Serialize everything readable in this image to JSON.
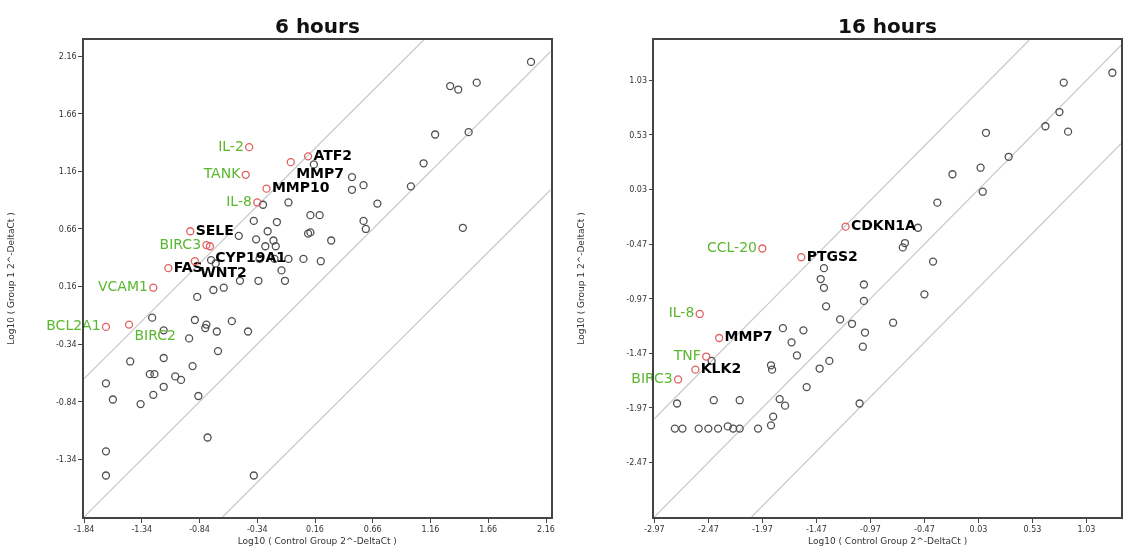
{
  "chart_data": [
    {
      "type": "scatter",
      "title": "6 hours",
      "xlabel": "Log10 ( Control Group 2^-DeltaCt )",
      "ylabel": "Log10 ( Group 1 2^-DeltaCt )",
      "xlim": [
        -1.84,
        2.2
      ],
      "ylim": [
        -1.84,
        2.3
      ],
      "xticks": [
        -1.84,
        -1.34,
        -0.84,
        -0.34,
        0.16,
        0.66,
        1.16,
        1.66,
        2.16
      ],
      "yticks": [
        -1.34,
        -0.84,
        -0.34,
        0.16,
        0.66,
        1.16,
        1.66,
        2.16
      ],
      "marker": "circle",
      "series": [
        {
          "type": "line",
          "marker": "none",
          "color": "#c8c8c8",
          "x": [
            -1.84,
            1.1
          ],
          "values": [
            -0.64,
            2.3
          ]
        },
        {
          "type": "line",
          "marker": "none",
          "color": "#c8c8c8",
          "x": [
            -1.84,
            2.2
          ],
          "values": [
            -1.84,
            2.2
          ]
        },
        {
          "type": "line",
          "marker": "none",
          "color": "#c8c8c8",
          "x": [
            -0.64,
            2.2
          ],
          "values": [
            -1.84,
            1.0
          ]
        },
        {
          "color": "#505050",
          "x": [
            2.03,
            1.33,
            1.4,
            1.56,
            1.2,
            1.49,
            1.1,
            0.99,
            1.44,
            0.7,
            0.48,
            0.58,
            0.48,
            0.58,
            0.6,
            0.15,
            0.3,
            0.12,
            0.2,
            0.1,
            0.12,
            0.21,
            0.06,
            -0.07,
            -0.29,
            -0.37,
            -0.17,
            -0.25,
            -0.5,
            -0.35,
            -0.2,
            -0.18,
            -0.27,
            -0.32,
            -0.19,
            -0.07,
            -0.74,
            -0.7,
            -0.13,
            -0.49,
            -0.33,
            -0.1,
            -0.63,
            -0.72,
            -0.86,
            -1.25,
            -0.88,
            -0.78,
            -0.79,
            -0.56,
            -0.69,
            -0.42,
            -1.15,
            -0.93,
            -0.68,
            -1.15,
            -1.44,
            -0.9,
            -1.27,
            -1.23,
            -1.05,
            -1.0,
            -1.65,
            -1.15,
            -1.24,
            -0.85,
            -1.59,
            -1.35,
            -0.77,
            -1.65,
            -1.65,
            -0.37
          ],
          "values": [
            2.11,
            1.9,
            1.87,
            1.93,
            1.48,
            1.5,
            1.23,
            1.03,
            0.67,
            0.88,
            1.11,
            1.04,
            1.0,
            0.73,
            0.66,
            1.22,
            0.56,
            0.78,
            0.78,
            0.62,
            0.63,
            0.38,
            0.4,
            0.89,
            0.87,
            0.73,
            0.72,
            0.64,
            0.6,
            0.57,
            0.56,
            0.51,
            0.51,
            0.4,
            0.4,
            0.4,
            0.39,
            0.36,
            0.3,
            0.21,
            0.21,
            0.21,
            0.15,
            0.13,
            0.07,
            -0.11,
            -0.13,
            -0.17,
            -0.2,
            -0.14,
            -0.23,
            -0.23,
            -0.22,
            -0.29,
            -0.4,
            -0.46,
            -0.49,
            -0.53,
            -0.6,
            -0.6,
            -0.62,
            -0.65,
            -0.68,
            -0.71,
            -0.78,
            -0.79,
            -0.82,
            -0.86,
            -1.15,
            -1.27,
            -1.48,
            -1.48
          ]
        },
        {
          "color": "#e06060",
          "x": [
            -0.41,
            -0.44,
            -0.34,
            -0.78,
            -1.24,
            -1.65
          ],
          "values": [
            1.37,
            1.13,
            0.89,
            0.52,
            0.15,
            -0.19
          ],
          "value_labels": [
            "IL-2",
            "TANK",
            "IL-8",
            "BIRC3",
            "VCAM1",
            "BCL2A1"
          ]
        },
        {
          "color": "#e06060",
          "x": [
            0.1,
            -0.26,
            -0.92,
            -1.11
          ],
          "values": [
            1.29,
            1.01,
            0.64,
            0.32
          ],
          "value_labels": [
            "ATF2",
            "MMP10",
            "SELE",
            "FAS"
          ]
        },
        {
          "color": "#e06060",
          "x": [
            -1.45
          ],
          "values": [
            -0.17
          ],
          "value_labels": [
            "BIRC2"
          ]
        },
        {
          "color": "#e06060",
          "x": [
            -0.05,
            -0.75,
            -0.88
          ],
          "values": [
            1.24,
            0.51,
            0.38
          ],
          "value_labels": [
            "MMP7",
            "CYP19A1",
            "WNT2"
          ]
        }
      ]
    },
    {
      "type": "scatter",
      "title": "16 hours",
      "xlabel": "Log10 ( Control Group 2^-DeltaCt )",
      "ylabel": "Log10 ( Group 1 2^-DeltaCt )",
      "xlim": [
        -2.97,
        1.35
      ],
      "ylim": [
        -2.97,
        1.4
      ],
      "xticks": [
        -2.97,
        -2.47,
        -1.97,
        -1.47,
        -0.97,
        -0.47,
        0.03,
        0.53,
        1.03
      ],
      "yticks": [
        -2.47,
        -1.97,
        -1.47,
        -0.97,
        -0.47,
        0.03,
        0.53,
        1.03
      ],
      "marker": "circle",
      "series": [
        {
          "type": "line",
          "marker": "none",
          "color": "#c8c8c8",
          "x": [
            -2.97,
            0.5
          ],
          "values": [
            -2.07,
            1.4
          ]
        },
        {
          "type": "line",
          "marker": "none",
          "color": "#c8c8c8",
          "x": [
            -2.97,
            1.35
          ],
          "values": [
            -2.97,
            1.35
          ]
        },
        {
          "type": "line",
          "marker": "none",
          "color": "#c8c8c8",
          "x": [
            -2.07,
            1.35
          ],
          "values": [
            -2.97,
            0.45
          ]
        },
        {
          "color": "#505050",
          "x": [
            1.27,
            0.82,
            0.78,
            0.65,
            0.86,
            0.1,
            0.31,
            0.05,
            -0.21,
            0.07,
            -0.35,
            -0.53,
            -0.65,
            -0.67,
            -0.39,
            -1.4,
            -1.43,
            -1.4,
            -1.03,
            -1.03,
            -0.47,
            -1.38,
            -1.25,
            -1.14,
            -0.76,
            -1.78,
            -1.59,
            -1.02,
            -1.7,
            -1.04,
            -1.65,
            -1.35,
            -2.44,
            -1.89,
            -1.88,
            -1.44,
            -1.56,
            -1.81,
            -1.76,
            -2.76,
            -2.42,
            -2.18,
            -1.07,
            -1.87,
            -1.89,
            -2.78,
            -2.71,
            -2.56,
            -2.47,
            -2.38,
            -2.29,
            -2.24,
            -2.18,
            -2.01
          ],
          "values": [
            1.1,
            1.01,
            0.74,
            0.61,
            0.56,
            0.55,
            0.33,
            0.23,
            0.17,
            0.01,
            -0.09,
            -0.32,
            -0.46,
            -0.5,
            -0.63,
            -0.69,
            -0.79,
            -0.87,
            -0.84,
            -0.99,
            -0.93,
            -1.04,
            -1.16,
            -1.2,
            -1.19,
            -1.24,
            -1.26,
            -1.28,
            -1.37,
            -1.41,
            -1.49,
            -1.54,
            -1.54,
            -1.58,
            -1.62,
            -1.61,
            -1.78,
            -1.89,
            -1.95,
            -1.93,
            -1.9,
            -1.9,
            -1.93,
            -2.05,
            -2.13,
            -2.16,
            -2.16,
            -2.16,
            -2.16,
            -2.16,
            -2.14,
            -2.16,
            -2.16,
            -2.16
          ]
        },
        {
          "color": "#e06060",
          "x": [
            -1.97,
            -2.55,
            -2.49,
            -2.75
          ],
          "values": [
            -0.51,
            -1.11,
            -1.5,
            -1.71
          ],
          "value_labels": [
            "CCL-20",
            "IL-8",
            "TNF",
            "BIRC3"
          ]
        },
        {
          "color": "#e06060",
          "x": [
            -1.2,
            -1.61,
            -2.37,
            -2.59
          ],
          "values": [
            -0.31,
            -0.59,
            -1.33,
            -1.62
          ],
          "value_labels": [
            "CDKN1A",
            "PTGS2",
            "MMP7",
            "KLK2"
          ]
        }
      ]
    }
  ]
}
